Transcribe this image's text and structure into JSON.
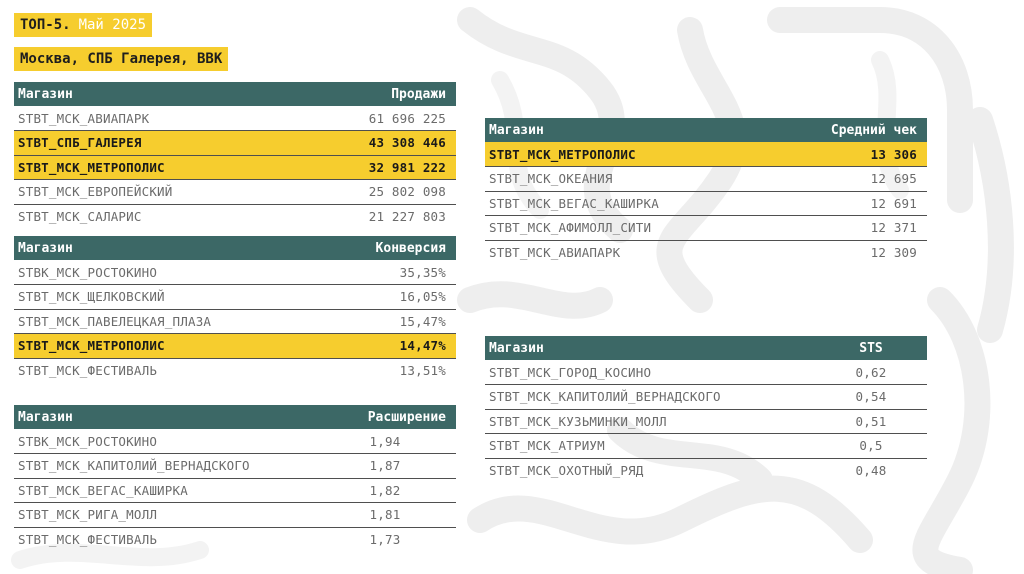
{
  "header": {
    "title": "ТОП-5.",
    "month": "Май 2025",
    "subtitle": "Москва, СПБ Галерея, ВВК"
  },
  "sales": {
    "col_store": "Магазин",
    "col_value": "Продажи",
    "rows": [
      {
        "store": "STBT_МСК_АВИАПАРК",
        "value": "61 696 225",
        "highlight": false
      },
      {
        "store": "STBT_СПБ_ГАЛЕРЕЯ",
        "value": "43 308 446",
        "highlight": true
      },
      {
        "store": "STBT_МСК_МЕТРОПОЛИС",
        "value": "32 981 222",
        "highlight": true
      },
      {
        "store": "STBT_МСК_ЕВРОПЕЙСКИЙ",
        "value": "25 802 098",
        "highlight": false
      },
      {
        "store": "STBT_МСК_САЛАРИС",
        "value": "21 227 803",
        "highlight": false
      }
    ]
  },
  "conversion": {
    "col_store": "Магазин",
    "col_value": "Конверсия",
    "rows": [
      {
        "store": "STBK_МСК_РОСТОКИНО",
        "value": "35,35%",
        "highlight": false
      },
      {
        "store": "STBT_МСК_ЩЕЛКОВСКИЙ",
        "value": "16,05%",
        "highlight": false
      },
      {
        "store": "STBT_МСК_ПАВЕЛЕЦКАЯ_ПЛАЗА",
        "value": "15,47%",
        "highlight": false
      },
      {
        "store": "STBT_МСК_МЕТРОПОЛИС",
        "value": "14,47%",
        "highlight": true
      },
      {
        "store": "STBT_МСК_ФЕСТИВАЛЬ",
        "value": "13,51%",
        "highlight": false
      }
    ]
  },
  "expansion": {
    "col_store": "Магазин",
    "col_value": "Расширение",
    "rows": [
      {
        "store": "STBK_МСК_РОСТОКИНО",
        "value": "1,94",
        "highlight": false
      },
      {
        "store": "STBT_МСК_КАПИТОЛИЙ_ВЕРНАДСКОГО",
        "value": "1,87",
        "highlight": false
      },
      {
        "store": "STBT_МСК_ВЕГАС_КАШИРКА",
        "value": "1,82",
        "highlight": false
      },
      {
        "store": "STBT_МСК_РИГА_МОЛЛ",
        "value": "1,81",
        "highlight": false
      },
      {
        "store": "STBT_МСК_ФЕСТИВАЛЬ",
        "value": "1,73",
        "highlight": false
      }
    ]
  },
  "avg_check": {
    "col_store": "Магазин",
    "col_value": "Средний чек",
    "rows": [
      {
        "store": "STBT_МСК_МЕТРОПОЛИС",
        "value": "13 306",
        "highlight": true
      },
      {
        "store": "STBT_МСК_ОКЕАНИЯ",
        "value": "12 695",
        "highlight": false
      },
      {
        "store": "STBT_МСК_ВЕГАС_КАШИРКА",
        "value": "12 691",
        "highlight": false
      },
      {
        "store": "STBT_МСК_АФИМОЛЛ_СИТИ",
        "value": "12 371",
        "highlight": false
      },
      {
        "store": "STBT_МСК_АВИАПАРК",
        "value": "12 309",
        "highlight": false
      }
    ]
  },
  "sts": {
    "col_store": "Магазин",
    "col_value": "STS",
    "rows": [
      {
        "store": "STBT_МСК_ГОРОД_КОСИНО",
        "value": "0,62",
        "highlight": false
      },
      {
        "store": "STBT_МСК_КАПИТОЛИЙ_ВЕРНАДСКОГО",
        "value": "0,54",
        "highlight": false
      },
      {
        "store": "STBT_МСК_КУЗЬМИНКИ_МОЛЛ",
        "value": "0,51",
        "highlight": false
      },
      {
        "store": "STBT_МСК_АТРИУМ",
        "value": "0,5",
        "highlight": false
      },
      {
        "store": "STBT_МСК_ОХОТНЫЙ_РЯД",
        "value": "0,48",
        "highlight": false
      }
    ]
  },
  "colors": {
    "header_bg": "#3c6866",
    "highlight": "#f6cd2e"
  }
}
